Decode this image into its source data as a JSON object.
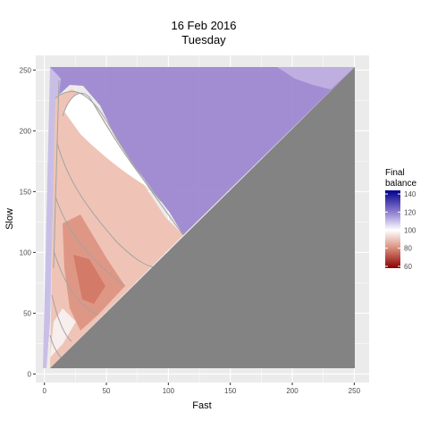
{
  "chart_data": {
    "type": "heatmap",
    "title": "16 Feb 2016",
    "subtitle": "Tuesday",
    "xlabel": "Fast",
    "ylabel": "Slow",
    "xlim": [
      -7,
      262
    ],
    "ylim": [
      -7,
      262
    ],
    "x_ticks": [
      0,
      50,
      100,
      150,
      200,
      250
    ],
    "y_ticks": [
      0,
      50,
      100,
      150,
      200,
      250
    ],
    "grid": true,
    "masked_region": "slow <= fast (filled grey)",
    "legend": {
      "title_lines": [
        "Final",
        "balance"
      ],
      "ticks": [
        60,
        80,
        100,
        120,
        140
      ],
      "range": [
        58,
        144
      ],
      "placement": "right",
      "colors": {
        "low": "#8b0000",
        "mid": "#ffffff",
        "high": "#00008b"
      }
    },
    "regions": [
      {
        "label": "purple upper region",
        "approx_value": 124
      },
      {
        "label": "white ridge",
        "approx_value": 100
      },
      {
        "label": "light red middle band",
        "approx_value": 90
      },
      {
        "label": "red core",
        "approx_value": 78
      },
      {
        "label": "lavender fringe near small Fast",
        "approx_value": 110
      }
    ]
  }
}
